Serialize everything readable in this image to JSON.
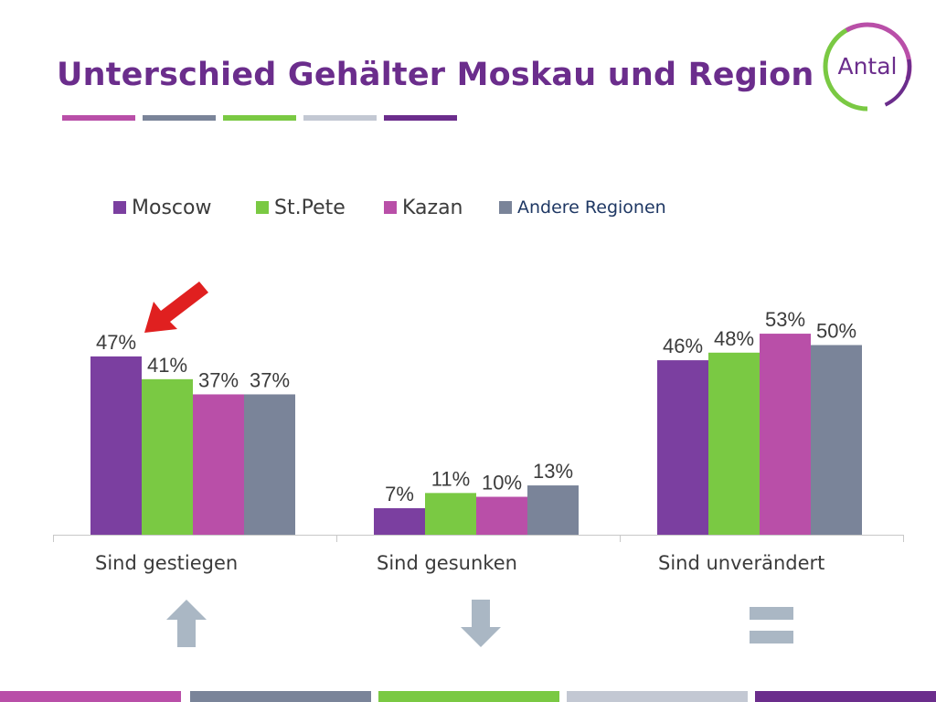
{
  "title": "Unterschied Gehälter Moskau und Region",
  "logo_text": "Antal",
  "colors": {
    "title": "#6b2d8c",
    "moscow": "#7b3fa0",
    "stpete": "#7ac943",
    "kazan": "#b94fa8",
    "andere": "#7a8499",
    "pointer": "#e02020",
    "icon": "#aab7c4"
  },
  "legend": [
    {
      "label": "Moscow",
      "color": "#7b3fa0"
    },
    {
      "label": "St.Pete",
      "color": "#7ac943"
    },
    {
      "label": "Kazan",
      "color": "#b94fa8"
    },
    {
      "label": "Andere Regionen",
      "color": "#7a8499"
    }
  ],
  "chart_data": {
    "type": "bar",
    "categories": [
      "Sind gestiegen",
      "Sind gesunken",
      "Sind unverändert"
    ],
    "series": [
      {
        "name": "Moscow",
        "values": [
          47,
          7,
          46
        ],
        "labels": [
          "47%",
          "7%",
          "46%"
        ]
      },
      {
        "name": "St.Pete",
        "values": [
          41,
          11,
          48
        ],
        "labels": [
          "41%",
          "11%",
          "48%"
        ]
      },
      {
        "name": "Kazan",
        "values": [
          37,
          10,
          53
        ],
        "labels": [
          "37%",
          "10%",
          "53%"
        ]
      },
      {
        "name": "Andere Regionen",
        "values": [
          37,
          13,
          50
        ],
        "labels": [
          "37%",
          "13%",
          "50%"
        ]
      }
    ],
    "ylim": [
      0,
      60
    ],
    "grid": false,
    "legend_position": "top"
  },
  "icons": [
    "arrow-up-icon",
    "arrow-down-icon",
    "equals-icon"
  ]
}
